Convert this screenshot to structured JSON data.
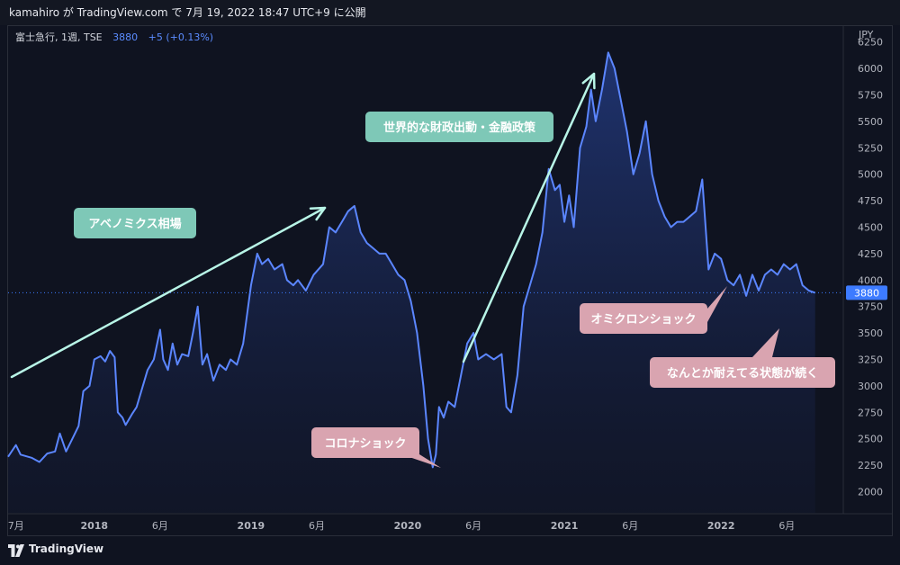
{
  "header": {
    "text": "kamahiro が TradingView.com で 7月 19, 2022 18:47 UTC+9 に公開"
  },
  "legend": {
    "symbol": "富士急行, 1週, TSE",
    "price": "3880",
    "change": "+5 (+0.13%)"
  },
  "footer": {
    "brand": "TradingView"
  },
  "colors": {
    "line": "#5b86ff",
    "arrow": "#b8f5e7",
    "callout_green": "#7ec8b7",
    "callout_pink": "#d9a4b0",
    "price_tag": "#3d7bff"
  },
  "chart_data": {
    "type": "area",
    "currency_label": "JPY",
    "ylim": [
      1800,
      6400
    ],
    "y_ticks": [
      2000,
      2250,
      2500,
      2750,
      3000,
      3250,
      3500,
      3750,
      4000,
      4250,
      4500,
      4750,
      5000,
      5250,
      5500,
      5750,
      6000,
      6250
    ],
    "last_price": 3880,
    "last_price_label": "3880",
    "x_ticks": [
      {
        "label": "7月",
        "x": 2017.5
      },
      {
        "label": "2018",
        "x": 2018.0
      },
      {
        "label": "6月",
        "x": 2018.42
      },
      {
        "label": "2019",
        "x": 2019.0
      },
      {
        "label": "6月",
        "x": 2019.42
      },
      {
        "label": "2020",
        "x": 2020.0
      },
      {
        "label": "6月",
        "x": 2020.42
      },
      {
        "label": "2021",
        "x": 2021.0
      },
      {
        "label": "6月",
        "x": 2021.42
      },
      {
        "label": "2022",
        "x": 2022.0
      },
      {
        "label": "6月",
        "x": 2022.42
      }
    ],
    "xlim": [
      2017.45,
      2022.78
    ],
    "series": [
      {
        "values": [
          [
            2017.45,
            2330
          ],
          [
            2017.5,
            2440
          ],
          [
            2017.53,
            2350
          ],
          [
            2017.6,
            2320
          ],
          [
            2017.65,
            2280
          ],
          [
            2017.7,
            2360
          ],
          [
            2017.75,
            2380
          ],
          [
            2017.78,
            2550
          ],
          [
            2017.82,
            2380
          ],
          [
            2017.86,
            2500
          ],
          [
            2017.9,
            2620
          ],
          [
            2017.93,
            2950
          ],
          [
            2017.97,
            3000
          ],
          [
            2018.0,
            3250
          ],
          [
            2018.04,
            3280
          ],
          [
            2018.07,
            3230
          ],
          [
            2018.1,
            3330
          ],
          [
            2018.13,
            3270
          ],
          [
            2018.15,
            2750
          ],
          [
            2018.18,
            2700
          ],
          [
            2018.2,
            2630
          ],
          [
            2018.24,
            2730
          ],
          [
            2018.27,
            2800
          ],
          [
            2018.3,
            2950
          ],
          [
            2018.34,
            3150
          ],
          [
            2018.38,
            3250
          ],
          [
            2018.42,
            3530
          ],
          [
            2018.44,
            3250
          ],
          [
            2018.47,
            3150
          ],
          [
            2018.5,
            3400
          ],
          [
            2018.53,
            3200
          ],
          [
            2018.56,
            3300
          ],
          [
            2018.6,
            3280
          ],
          [
            2018.63,
            3500
          ],
          [
            2018.66,
            3750
          ],
          [
            2018.69,
            3200
          ],
          [
            2018.72,
            3300
          ],
          [
            2018.76,
            3050
          ],
          [
            2018.8,
            3200
          ],
          [
            2018.84,
            3150
          ],
          [
            2018.87,
            3250
          ],
          [
            2018.91,
            3200
          ],
          [
            2018.95,
            3400
          ],
          [
            2019.0,
            3950
          ],
          [
            2019.04,
            4250
          ],
          [
            2019.07,
            4150
          ],
          [
            2019.11,
            4200
          ],
          [
            2019.15,
            4100
          ],
          [
            2019.2,
            4150
          ],
          [
            2019.23,
            4000
          ],
          [
            2019.27,
            3950
          ],
          [
            2019.3,
            4000
          ],
          [
            2019.35,
            3900
          ],
          [
            2019.4,
            4050
          ],
          [
            2019.46,
            4150
          ],
          [
            2019.5,
            4500
          ],
          [
            2019.54,
            4450
          ],
          [
            2019.58,
            4550
          ],
          [
            2019.62,
            4650
          ],
          [
            2019.66,
            4700
          ],
          [
            2019.7,
            4450
          ],
          [
            2019.74,
            4350
          ],
          [
            2019.78,
            4300
          ],
          [
            2019.82,
            4250
          ],
          [
            2019.86,
            4250
          ],
          [
            2019.9,
            4150
          ],
          [
            2019.94,
            4050
          ],
          [
            2019.98,
            4000
          ],
          [
            2020.02,
            3800
          ],
          [
            2020.06,
            3500
          ],
          [
            2020.1,
            3000
          ],
          [
            2020.13,
            2500
          ],
          [
            2020.16,
            2230
          ],
          [
            2020.18,
            2350
          ],
          [
            2020.2,
            2800
          ],
          [
            2020.23,
            2700
          ],
          [
            2020.26,
            2850
          ],
          [
            2020.3,
            2800
          ],
          [
            2020.34,
            3100
          ],
          [
            2020.38,
            3400
          ],
          [
            2020.42,
            3500
          ],
          [
            2020.45,
            3250
          ],
          [
            2020.5,
            3300
          ],
          [
            2020.55,
            3250
          ],
          [
            2020.6,
            3300
          ],
          [
            2020.63,
            2800
          ],
          [
            2020.66,
            2750
          ],
          [
            2020.7,
            3100
          ],
          [
            2020.74,
            3750
          ],
          [
            2020.78,
            3950
          ],
          [
            2020.82,
            4150
          ],
          [
            2020.86,
            4450
          ],
          [
            2020.9,
            5050
          ],
          [
            2020.94,
            4850
          ],
          [
            2020.97,
            4900
          ],
          [
            2021.0,
            4550
          ],
          [
            2021.03,
            4800
          ],
          [
            2021.06,
            4500
          ],
          [
            2021.1,
            5250
          ],
          [
            2021.14,
            5450
          ],
          [
            2021.17,
            5800
          ],
          [
            2021.2,
            5500
          ],
          [
            2021.24,
            5800
          ],
          [
            2021.28,
            6150
          ],
          [
            2021.32,
            6000
          ],
          [
            2021.36,
            5700
          ],
          [
            2021.4,
            5400
          ],
          [
            2021.44,
            5000
          ],
          [
            2021.48,
            5200
          ],
          [
            2021.52,
            5500
          ],
          [
            2021.56,
            5000
          ],
          [
            2021.6,
            4750
          ],
          [
            2021.64,
            4600
          ],
          [
            2021.68,
            4500
          ],
          [
            2021.72,
            4550
          ],
          [
            2021.76,
            4550
          ],
          [
            2021.8,
            4600
          ],
          [
            2021.84,
            4650
          ],
          [
            2021.88,
            4950
          ],
          [
            2021.92,
            4100
          ],
          [
            2021.96,
            4250
          ],
          [
            2022.0,
            4200
          ],
          [
            2022.04,
            4000
          ],
          [
            2022.08,
            3950
          ],
          [
            2022.12,
            4050
          ],
          [
            2022.16,
            3850
          ],
          [
            2022.2,
            4050
          ],
          [
            2022.24,
            3900
          ],
          [
            2022.28,
            4050
          ],
          [
            2022.32,
            4100
          ],
          [
            2022.36,
            4050
          ],
          [
            2022.4,
            4150
          ],
          [
            2022.44,
            4100
          ],
          [
            2022.48,
            4150
          ],
          [
            2022.52,
            3950
          ],
          [
            2022.56,
            3900
          ],
          [
            2022.6,
            3880
          ]
        ]
      }
    ],
    "annotations": {
      "abenomics": "アベノミクス相場",
      "fiscal": "世界的な財政出動・金融政策",
      "corona": "コロナショック",
      "omicron": "オミクロンショック",
      "holding": "なんとか耐えてる状態が続く"
    }
  }
}
